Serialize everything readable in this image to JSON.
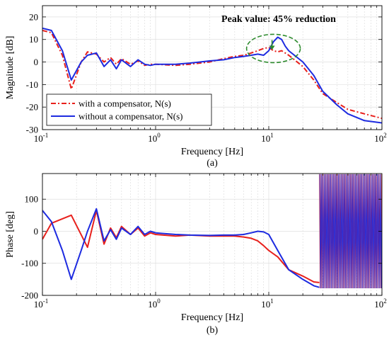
{
  "chart_data": [
    {
      "type": "line",
      "panel_label": "(a)",
      "xlabel": "Frequency [Hz]",
      "ylabel": "Magnitude [dB]",
      "xscale": "log",
      "xlim": [
        0.1,
        100
      ],
      "ylim": [
        -30,
        25
      ],
      "xticks": [
        0.1,
        1,
        10,
        100
      ],
      "xtick_labels": [
        {
          "base": "10",
          "exp": "-1"
        },
        {
          "base": "10",
          "exp": "0"
        },
        {
          "base": "10",
          "exp": "1"
        },
        {
          "base": "10",
          "exp": "2"
        }
      ],
      "yticks": [
        20,
        10,
        0,
        -10,
        -20,
        -30
      ],
      "ytick_labels": [
        "20",
        "10",
        "0",
        "-10",
        "-20",
        "-30"
      ],
      "grid": true,
      "legend_position": "bottom-left",
      "annotation": {
        "text": "Peak value: 45% reduction",
        "marker": "dashed ellipse around peak near 10 Hz with downward arrow",
        "x": 11,
        "y": 6
      },
      "series": [
        {
          "name": "with a compensator, N(s)",
          "color": "#e8201c",
          "dash": "dashdot",
          "points": [
            [
              0.1,
              14
            ],
            [
              0.12,
              13
            ],
            [
              0.15,
              3
            ],
            [
              0.18,
              -12
            ],
            [
              0.22,
              0
            ],
            [
              0.25,
              4.5
            ],
            [
              0.3,
              3.5
            ],
            [
              0.35,
              0
            ],
            [
              0.4,
              2
            ],
            [
              0.45,
              -1
            ],
            [
              0.5,
              1.5
            ],
            [
              0.6,
              -1
            ],
            [
              0.7,
              0.5
            ],
            [
              0.8,
              -1.5
            ],
            [
              0.9,
              -1
            ],
            [
              1,
              -1
            ],
            [
              1.5,
              -1.5
            ],
            [
              2,
              -1
            ],
            [
              3,
              0
            ],
            [
              4,
              1.5
            ],
            [
              5,
              2.5
            ],
            [
              6,
              3
            ],
            [
              7,
              4
            ],
            [
              8,
              5
            ],
            [
              9,
              6
            ],
            [
              10,
              6.5
            ],
            [
              11,
              5
            ],
            [
              12,
              4.5
            ],
            [
              13,
              5
            ],
            [
              15,
              3
            ],
            [
              20,
              -2
            ],
            [
              25,
              -8
            ],
            [
              30,
              -14
            ],
            [
              40,
              -18
            ],
            [
              50,
              -21
            ],
            [
              70,
              -23
            ],
            [
              100,
              -25
            ]
          ]
        },
        {
          "name": "without a compensator, N(s)",
          "color": "#1d2be0",
          "dash": "solid",
          "points": [
            [
              0.1,
              15
            ],
            [
              0.12,
              14
            ],
            [
              0.15,
              5
            ],
            [
              0.18,
              -8
            ],
            [
              0.22,
              0
            ],
            [
              0.25,
              3
            ],
            [
              0.3,
              4
            ],
            [
              0.35,
              -2
            ],
            [
              0.4,
              1
            ],
            [
              0.45,
              -3
            ],
            [
              0.5,
              1
            ],
            [
              0.6,
              -2
            ],
            [
              0.7,
              1
            ],
            [
              0.8,
              -1
            ],
            [
              0.9,
              -1.5
            ],
            [
              1,
              -1
            ],
            [
              1.5,
              -1
            ],
            [
              2,
              -0.5
            ],
            [
              3,
              0.5
            ],
            [
              4,
              1
            ],
            [
              5,
              2
            ],
            [
              6,
              2.5
            ],
            [
              7,
              3
            ],
            [
              8,
              3.5
            ],
            [
              9,
              3
            ],
            [
              10,
              5
            ],
            [
              11,
              9
            ],
            [
              12,
              11
            ],
            [
              13,
              10
            ],
            [
              14,
              7
            ],
            [
              15,
              5
            ],
            [
              20,
              0
            ],
            [
              25,
              -6
            ],
            [
              30,
              -13
            ],
            [
              40,
              -19
            ],
            [
              50,
              -23
            ],
            [
              70,
              -26
            ],
            [
              100,
              -27
            ]
          ]
        }
      ]
    },
    {
      "type": "line",
      "panel_label": "(b)",
      "xlabel": "Frequency [Hz]",
      "ylabel": "Phase [deg]",
      "xscale": "log",
      "xlim": [
        0.1,
        100
      ],
      "ylim": [
        -200,
        180
      ],
      "xticks": [
        0.1,
        1,
        10,
        100
      ],
      "xtick_labels": [
        {
          "base": "10",
          "exp": "-1"
        },
        {
          "base": "10",
          "exp": "0"
        },
        {
          "base": "10",
          "exp": "1"
        },
        {
          "base": "10",
          "exp": "2"
        }
      ],
      "yticks": [
        100,
        0,
        -100,
        -200
      ],
      "ytick_labels": [
        "100",
        "0",
        "-100",
        "-200"
      ],
      "grid": true,
      "note": "Phase oscillates rapidly across the full range above about 28 Hz",
      "series": [
        {
          "name": "with a compensator, N(s)",
          "color": "#e8201c",
          "dash": "solid",
          "points": [
            [
              0.1,
              -25
            ],
            [
              0.12,
              25
            ],
            [
              0.18,
              50
            ],
            [
              0.25,
              -50
            ],
            [
              0.3,
              65
            ],
            [
              0.35,
              -40
            ],
            [
              0.4,
              10
            ],
            [
              0.45,
              -20
            ],
            [
              0.5,
              15
            ],
            [
              0.6,
              -10
            ],
            [
              0.7,
              10
            ],
            [
              0.8,
              -15
            ],
            [
              0.9,
              -5
            ],
            [
              1,
              -10
            ],
            [
              1.5,
              -15
            ],
            [
              2,
              -12
            ],
            [
              3,
              -15
            ],
            [
              4,
              -15
            ],
            [
              5,
              -15
            ],
            [
              6,
              -18
            ],
            [
              7,
              -22
            ],
            [
              8,
              -30
            ],
            [
              9,
              -45
            ],
            [
              10,
              -60
            ],
            [
              12,
              -80
            ],
            [
              15,
              -120
            ],
            [
              20,
              -140
            ],
            [
              25,
              -158
            ],
            [
              28,
              -160
            ]
          ]
        },
        {
          "name": "without a compensator, N(s)",
          "color": "#1d2be0",
          "dash": "solid",
          "points": [
            [
              0.1,
              65
            ],
            [
              0.12,
              30
            ],
            [
              0.15,
              -60
            ],
            [
              0.18,
              -150
            ],
            [
              0.22,
              -60
            ],
            [
              0.25,
              0
            ],
            [
              0.3,
              70
            ],
            [
              0.35,
              -30
            ],
            [
              0.4,
              5
            ],
            [
              0.45,
              -25
            ],
            [
              0.5,
              10
            ],
            [
              0.6,
              -10
            ],
            [
              0.7,
              15
            ],
            [
              0.8,
              -10
            ],
            [
              0.9,
              0
            ],
            [
              1,
              -5
            ],
            [
              1.5,
              -10
            ],
            [
              2,
              -12
            ],
            [
              3,
              -13
            ],
            [
              4,
              -12
            ],
            [
              5,
              -12
            ],
            [
              6,
              -10
            ],
            [
              7,
              -5
            ],
            [
              8,
              0
            ],
            [
              9,
              -2
            ],
            [
              10,
              -10
            ],
            [
              12,
              -60
            ],
            [
              15,
              -120
            ],
            [
              20,
              -150
            ],
            [
              25,
              -170
            ],
            [
              28,
              -175
            ]
          ]
        }
      ]
    }
  ]
}
